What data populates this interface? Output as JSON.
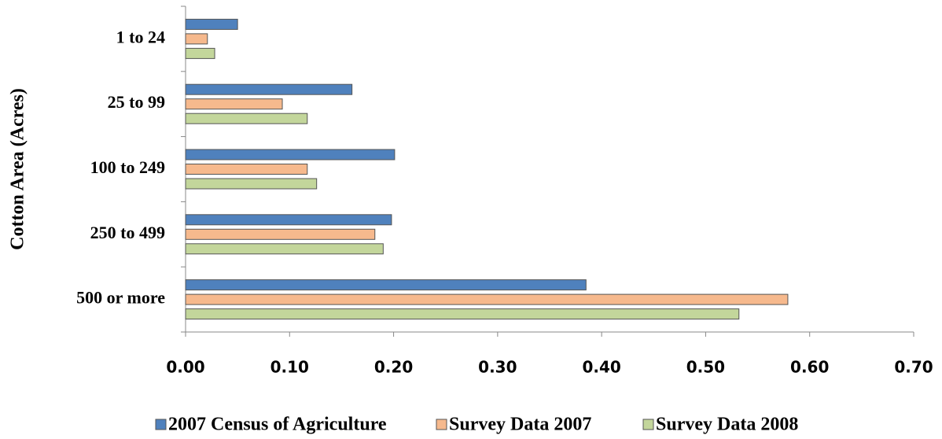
{
  "chart_data": {
    "type": "bar",
    "orientation": "horizontal",
    "y_axis_label": "Cotton Area (Acres)",
    "categories": [
      "1 to 24",
      "25 to 99",
      "100 to 249",
      "250 to 499",
      "500 or more"
    ],
    "series": [
      {
        "name": "2007 Census of Agriculture",
        "color": "#4f81bd",
        "values": [
          0.05,
          0.16,
          0.201,
          0.198,
          0.385
        ]
      },
      {
        "name": "Survey Data 2007",
        "color": "#f6b98d",
        "values": [
          0.021,
          0.093,
          0.117,
          0.182,
          0.579
        ]
      },
      {
        "name": "Survey Data 2008",
        "color": "#c3d69b",
        "values": [
          0.028,
          0.117,
          0.126,
          0.19,
          0.532
        ]
      }
    ],
    "xlim": [
      0,
      0.7
    ],
    "xticks": [
      {
        "value": 0,
        "label": "0.00"
      },
      {
        "value": 0.1,
        "label": "0.10"
      },
      {
        "value": 0.2,
        "label": "0.20"
      },
      {
        "value": 0.3,
        "label": "0.30"
      },
      {
        "value": 0.4,
        "label": "0.40"
      },
      {
        "value": 0.5,
        "label": "0.50"
      },
      {
        "value": 0.6,
        "label": "0.60"
      },
      {
        "value": 0.7,
        "label": "0.70"
      }
    ],
    "grid": false,
    "legend": "bottom"
  }
}
